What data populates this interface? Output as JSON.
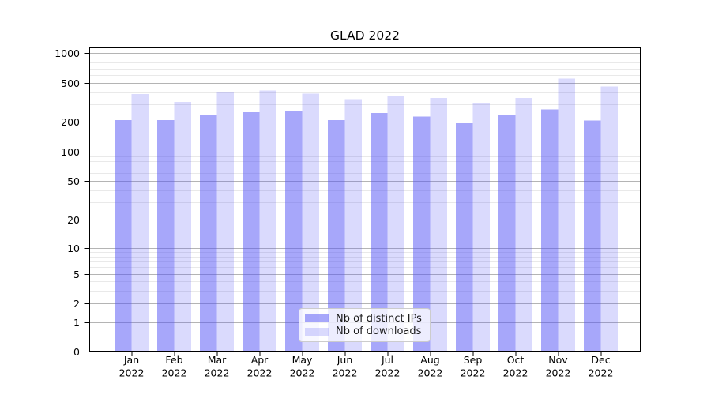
{
  "chart_data": {
    "type": "bar",
    "title": "GLAD 2022",
    "categories": [
      "Jan 2022",
      "Feb 2022",
      "Mar 2022",
      "Apr 2022",
      "May 2022",
      "Jun 2022",
      "Jul 2022",
      "Aug 2022",
      "Sep 2022",
      "Oct 2022",
      "Nov 2022",
      "Dec 2022"
    ],
    "series": [
      {
        "name": "Nb of distinct IPs",
        "values": [
          207,
          207,
          232,
          250,
          261,
          207,
          245,
          225,
          193,
          233,
          266,
          205
        ]
      },
      {
        "name": "Nb of downloads",
        "values": [
          385,
          320,
          400,
          420,
          388,
          342,
          363,
          350,
          312,
          350,
          555,
          458
        ]
      }
    ],
    "yticks": [
      0,
      1,
      2,
      5,
      10,
      20,
      50,
      100,
      200,
      500,
      1000
    ],
    "yscale": "symlog",
    "ylim": [
      0,
      1150
    ],
    "grid": "major-and-minor-horizontal",
    "legend_position": "lower center",
    "colors": {
      "bar_base": "#5050f5",
      "series_opacity": [
        0.5,
        0.21
      ],
      "major_grid": "#b4b4b4",
      "minor_grid": "#e9e9e9",
      "axis": "#000000",
      "legend_border": "#cccccc",
      "text": "#000000"
    }
  }
}
